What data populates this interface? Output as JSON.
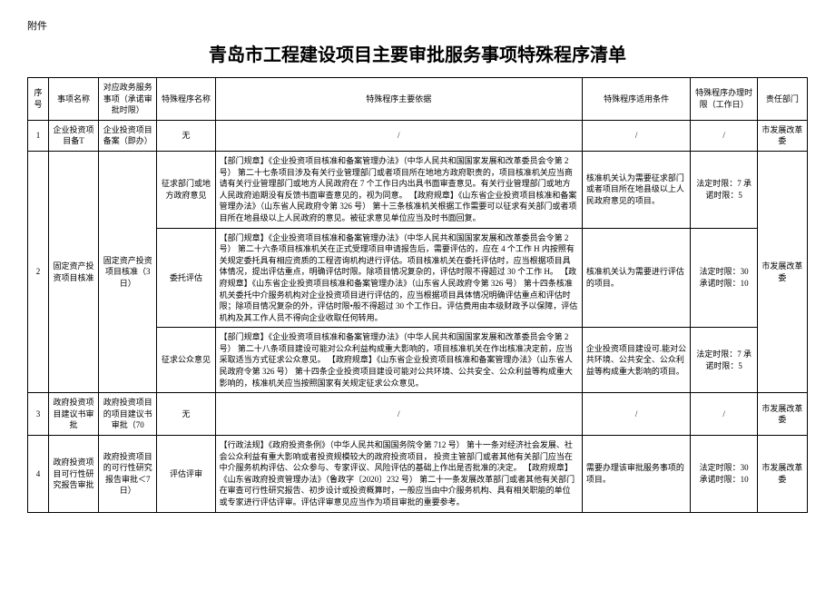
{
  "attachment_label": "附件",
  "title": "青岛市工程建设项目主要审批服务事项特殊程序清单",
  "headers": {
    "c0": "序号",
    "c1": "事项名称",
    "c2": "对应政务服务事项（承诺审批时限）",
    "c3": "特殊程序名称",
    "c4": "特殊程序主要依据",
    "c5": "特殊程序适用条件",
    "c6": "特殊程序办理时限（工作日）",
    "c7": "责任部门"
  },
  "rows": {
    "r1": {
      "seq": "1",
      "name": "企业投资项目备T",
      "service": "企业投资项目备案（即办）",
      "proc": "无",
      "basis": "/",
      "cond": "/",
      "time": "/",
      "dept": "市发展改革委"
    },
    "r2a": {
      "seq": "2",
      "name": "固定资产投资项目核准",
      "service": "固定资产投资项目核准（3日）",
      "proc": "征求部门或地方政府意见",
      "basis": "【部门规章】《企业投资项目核准和备案管理办法》（中华人民共和国国家发展和改革委员会令第 2 号）\n第二十七条项目涉及有关行业管理部门或者项目所在地地方政府职责的，项目核准机关应当商请有关行业管理部门或地方人民政府在 7 个工作日内出具书面审查意见。有关行业管理部门或地方人民政府逾期没有反馈书面审查意见的，视为同意。\n【政府规章】《山东省企业投资项目核准和备案管理办法》（山东省人民政府令第 326 号）\n第十三条核准机关根据工作需要可以征求有关部门或者项目所在地县级以上人民政府的意见。被征求意见单位应当及时书面回复。",
      "cond": "核准机关认为需要征求部门或者项目所在地县级以上人民政府意见的项目。",
      "time": "法定时限：7\n承诺时限：5",
      "dept": "市发展改革委"
    },
    "r2b": {
      "proc": "委托评估",
      "basis": "【部门规章】《企业投资项目核准和备案管理办法》（中华人民共和国国家发展和改革委员会令第 2 号）\n第二十六条项目核准机关在正式受理项目申请报告后，需要评估的，应在 4 个工作 H 内按照有关规定委托具有相应资质的工程咨询机构进行评估。项目核准机关在委托评估时，应当根据项目具体情况，提出评估重点，明确评估时限。除项目情况复杂的，评估时限不得超过 30 个工作 H。\n【政府规章】《山东省企业投资项目核准和备案管理办法》（山东省人民政府令第 326 号）\n第十四条核准机关委托中介服务机构对企业投资项目进行评估的，应当根据项目具体情况明确评估重点和评估时限；除项目情况复杂的外，评估时限•般不得超过 30 个工作日。评估费用由本级财政予以保障，评估机构及其工作人员不得向企业收取任何转用。",
      "cond": "核准机关认为需要进行评估的项目。",
      "time": "法定时限：30\n承诺时限：10"
    },
    "r2c": {
      "proc": "征求公众意见",
      "basis": "【部门规章】《企业投资项目核准和备案管理办法》（中华人民共和国国家发展和改革委员会令第 2 号）\n第二十八条项目建设可能对公众利益构成重大影响的，项目核准机关在作出核准决定前，应当采取适当方式征求公众意见。\n\n【政府规章】《山东省企业投资项目核准和备案管理办法》（山东省人民政府令第 326 号）\n第十四条企业投资项目建设可能对公共环境、公共安全、公众利益等构成重大影响的，核准机关应当按照国家有关规定征求公众意见。",
      "cond": "企业投资项目建设可.能对公共环境、公共安全、公众利益等构成重大影响的项目。",
      "time": "法定时限：7\n承诺时限：5"
    },
    "r3": {
      "seq": "3",
      "name": "政府投资项目建议书审批",
      "service": "政府投资项目的项目建议书审批（70",
      "proc": "无",
      "basis": "/",
      "cond": "/",
      "time": "/",
      "dept": "市发展改革委"
    },
    "r4": {
      "seq": "4",
      "name": "政府投资项目可行性研究报告审批",
      "service": "政府投资项目的可行性研究报告审批＜7日）",
      "proc": "评估评审",
      "basis": "【行政法规】《政府投资条例》（中华人民共和国国务院令第 712 号）\n第十一条对经济社会发展、社会公众利益有重大影响或者投资规模较大的政府投资项目，\n投资主管部门或者其他有关部门应当在中介服务机构评估、公众参与、专家评议、风险评估的基础上作出是否批准的决定。\n\n【政府规章】《山东省政府投资管理办法》（鲁政字〔2020〕232 号）\n第二十一条发展改革部门或者其他有关部门在审查可行性研究报告、初步设计或投资概算时，一般应当由中介服务机构、具有相关职能的单位或专家进行评估评审。评估评审意见应当作为项目审批的重要参考。",
      "cond": "需要办理该审批服务事项的项目。",
      "time": "法定时限：30\n承诺时限：10",
      "dept": "市发展改革委"
    }
  }
}
